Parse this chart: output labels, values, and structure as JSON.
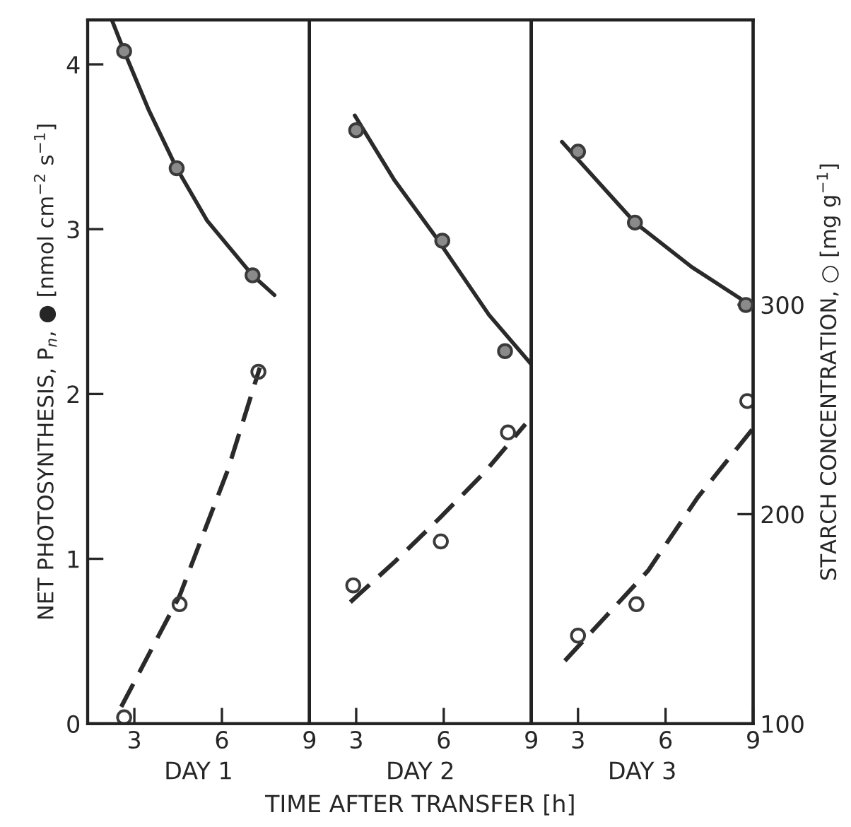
{
  "chart_data": [
    {
      "type": "scatter",
      "xlabel": "DAY 1",
      "ylabel": "NET PHOTOSYNTHESIS, P$_{n}$, ● [nmol cm$^{−2}$ s$^{−1}$]",
      "xlim": [
        1.4,
        9
      ],
      "xticks": [
        3,
        6,
        9
      ],
      "ylim": [
        0,
        4.27
      ],
      "yticks": [
        0,
        1,
        2,
        3,
        4
      ],
      "y2lim": [
        100,
        436
      ],
      "grid": false,
      "legend": false,
      "series": [
        {
          "marker": "circle",
          "color": "#3a3a3a",
          "x": [
            2.65,
            4.45,
            7.05
          ],
          "values": [
            4.08,
            3.37,
            2.72
          ]
        },
        {
          "type": "line",
          "line_style": "solid",
          "color": "#2a2a2a",
          "x": [
            2.25,
            2.65,
            3.5,
            4.45,
            5.5,
            6.3,
            7.05,
            7.8
          ],
          "values": [
            4.26,
            4.08,
            3.72,
            3.37,
            3.05,
            2.88,
            2.72,
            2.6
          ]
        },
        {
          "marker": "circle",
          "axis": "y2",
          "color": "#3a3a3a",
          "x": [
            2.65,
            4.55,
            7.25
          ],
          "values": [
            103,
            157,
            268
          ]
        },
        {
          "type": "line",
          "line_style": "dashed",
          "axis": "y2",
          "color": "#2a2a2a",
          "x": [
            2.55,
            4.55,
            6.2,
            7.3
          ],
          "values": [
            108,
            161,
            221,
            270
          ]
        }
      ]
    },
    {
      "type": "scatter",
      "xlabel": "DAY 2",
      "xlim": [
        1.4,
        9
      ],
      "xticks": [
        3,
        6,
        9
      ],
      "ylim": [
        0,
        4.27
      ],
      "y2lim": [
        100,
        436
      ],
      "grid": false,
      "legend": false,
      "annotations": [
        "TIME AFTER TRANSFER [h]"
      ],
      "series": [
        {
          "marker": "circle",
          "color": "#3a3a3a",
          "x": [
            3.0,
            5.95,
            8.1
          ],
          "values": [
            3.6,
            2.93,
            2.26
          ]
        },
        {
          "type": "line",
          "line_style": "solid",
          "color": "#2a2a2a",
          "x": [
            2.95,
            4.3,
            5.7,
            7.55,
            9
          ],
          "values": [
            3.69,
            3.3,
            2.96,
            2.48,
            2.18
          ]
        },
        {
          "marker": "circle",
          "axis": "y2",
          "color": "#3a3a3a",
          "x": [
            2.9,
            5.9,
            8.2
          ],
          "values": [
            166,
            187,
            239
          ]
        },
        {
          "type": "line",
          "line_style": "dashed",
          "axis": "y2",
          "color": "#2a2a2a",
          "x": [
            2.8,
            4.3,
            5.85,
            7.4,
            8.8
          ],
          "values": [
            158,
            177,
            198,
            220,
            243
          ]
        }
      ]
    },
    {
      "type": "scatter",
      "xlabel": "DAY 3",
      "y2label": "STARCH CONCENTRATION, ○ [mg g$^{−1}$]",
      "xlim": [
        1.4,
        9
      ],
      "xticks": [
        3,
        6,
        9
      ],
      "ylim": [
        0,
        4.27
      ],
      "y2lim": [
        100,
        436
      ],
      "y2ticks": [
        100,
        200,
        300
      ],
      "grid": false,
      "legend": false,
      "series": [
        {
          "marker": "circle",
          "color": "#3a3a3a",
          "x": [
            3.0,
            4.95,
            8.75
          ],
          "values": [
            3.47,
            3.04,
            2.54
          ]
        },
        {
          "type": "line",
          "line_style": "solid",
          "color": "#2a2a2a",
          "x": [
            2.45,
            4.95,
            6.9,
            8.9
          ],
          "values": [
            3.53,
            3.04,
            2.77,
            2.54
          ]
        },
        {
          "marker": "circle",
          "axis": "y2",
          "color": "#3a3a3a",
          "x": [
            3.0,
            5.0,
            8.8
          ],
          "values": [
            142,
            157,
            254
          ]
        },
        {
          "type": "line",
          "line_style": "dashed",
          "axis": "y2",
          "color": "#2a2a2a",
          "x": [
            2.55,
            5.4,
            7.1,
            9
          ],
          "values": [
            130,
            173,
            208,
            241
          ]
        }
      ]
    }
  ]
}
